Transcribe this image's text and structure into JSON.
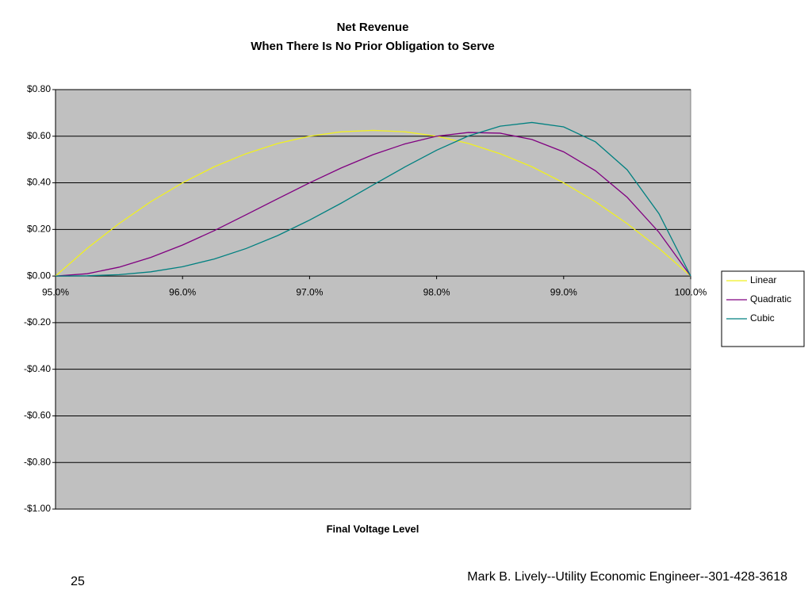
{
  "chart_data": {
    "type": "line",
    "title": "Net Revenue",
    "subtitle": "When There Is No Prior Obligation to Serve",
    "x_label": "Final Voltage Level",
    "x": [
      95,
      95.25,
      95.5,
      95.75,
      96,
      96.25,
      96.5,
      96.75,
      97,
      97.25,
      97.5,
      97.75,
      98,
      98.25,
      98.5,
      98.75,
      99,
      99.25,
      99.5,
      99.75,
      100
    ],
    "series": [
      {
        "name": "Linear",
        "color": "#f0f020",
        "values": [
          0,
          0.119,
          0.225,
          0.319,
          0.4,
          0.469,
          0.525,
          0.569,
          0.6,
          0.619,
          0.625,
          0.619,
          0.6,
          0.569,
          0.525,
          0.469,
          0.4,
          0.319,
          0.225,
          0.119,
          0
        ]
      },
      {
        "name": "Quadratic",
        "color": "#800080",
        "values": [
          0,
          0.01,
          0.038,
          0.08,
          0.133,
          0.195,
          0.263,
          0.332,
          0.4,
          0.464,
          0.521,
          0.567,
          0.6,
          0.616,
          0.613,
          0.586,
          0.533,
          0.452,
          0.338,
          0.188,
          0
        ]
      },
      {
        "name": "Cubic",
        "color": "#008080",
        "values": [
          0,
          0.001,
          0.006,
          0.018,
          0.04,
          0.073,
          0.118,
          0.174,
          0.24,
          0.313,
          0.391,
          0.468,
          0.54,
          0.601,
          0.643,
          0.659,
          0.64,
          0.576,
          0.456,
          0.268,
          0
        ]
      }
    ],
    "xlim": [
      95,
      100
    ],
    "xticks": [
      {
        "value": 95,
        "label": "95.0%"
      },
      {
        "value": 96,
        "label": "96.0%"
      },
      {
        "value": 97,
        "label": "97.0%"
      },
      {
        "value": 98,
        "label": "98.0%"
      },
      {
        "value": 99,
        "label": "99.0%"
      },
      {
        "value": 100,
        "label": "100.0%"
      }
    ],
    "ylim": [
      -1,
      0.8
    ],
    "yticks": [
      {
        "value": 0.8,
        "label": "$0.80"
      },
      {
        "value": 0.6,
        "label": "$0.60"
      },
      {
        "value": 0.4,
        "label": "$0.40"
      },
      {
        "value": 0.2,
        "label": "$0.20"
      },
      {
        "value": 0,
        "label": "$0.00"
      },
      {
        "value": -0.2,
        "label": "-$0.20"
      },
      {
        "value": -0.4,
        "label": "-$0.40"
      },
      {
        "value": -0.6,
        "label": "-$0.60"
      },
      {
        "value": -0.8,
        "label": "-$0.80"
      },
      {
        "value": -1,
        "label": "-$1.00"
      }
    ],
    "grid": true,
    "legend": "right"
  },
  "footer": {
    "page": "25",
    "author": "Mark B. Lively--Utility Economic Engineer--301-428-3618"
  }
}
